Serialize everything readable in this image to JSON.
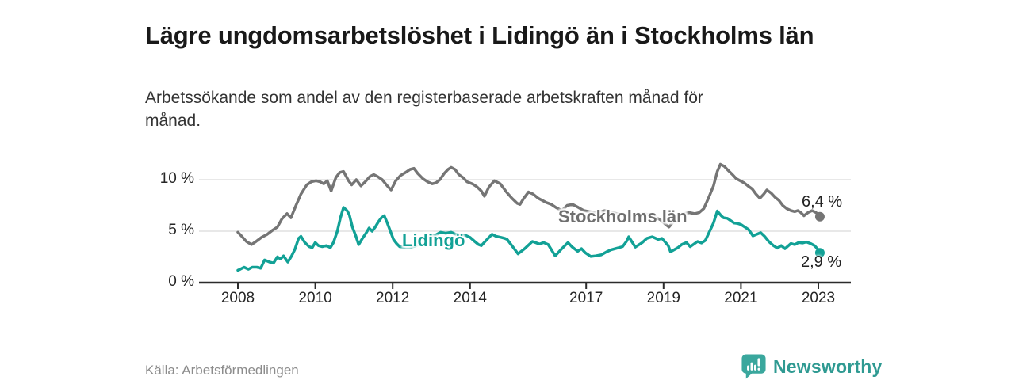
{
  "header": {
    "title": "Lägre ungdomsarbetslöshet i Lidingö än i Stockholms län",
    "subtitle": "Arbetssökande som andel av den registerbaserade arbetskraften månad för månad."
  },
  "footer": {
    "source": "Källa: Arbetsförmedlingen",
    "brand": "Newsworthy",
    "brand_color": "#2f9a92",
    "brand_icon": "speech-bubble-bar-chart-icon"
  },
  "chart_data": {
    "type": "line",
    "title": "Lägre ungdomsarbetslöshet i Lidingö än i Stockholms län",
    "xlabel": "",
    "ylabel": "",
    "xlim": [
      2008,
      2023.2
    ],
    "ylim": [
      0,
      11.8
    ],
    "grid": "horizontal",
    "legend_position": "inline-labels",
    "x_ticks": [
      2008,
      2010,
      2012,
      2014,
      2017,
      2019,
      2021,
      2023
    ],
    "y_ticks": [
      {
        "value": 0,
        "label": "0 %"
      },
      {
        "value": 5,
        "label": "5 %"
      },
      {
        "value": 10,
        "label": "10 %"
      }
    ],
    "colors": {
      "axis": "#2b2b2b",
      "gridline": "#d9d9d9",
      "tick_text": "#262626"
    },
    "series": [
      {
        "name": "Stockholms län",
        "color": "#757575",
        "end_label": "6,4 %",
        "end_value": 6.4,
        "points": [
          [
            2008.0,
            4.9
          ],
          [
            2008.1,
            4.5
          ],
          [
            2008.22,
            4.0
          ],
          [
            2008.35,
            3.7
          ],
          [
            2008.47,
            4.0
          ],
          [
            2008.61,
            4.4
          ],
          [
            2008.76,
            4.7
          ],
          [
            2008.9,
            5.1
          ],
          [
            2009.02,
            5.4
          ],
          [
            2009.14,
            6.2
          ],
          [
            2009.27,
            6.7
          ],
          [
            2009.37,
            6.3
          ],
          [
            2009.49,
            7.4
          ],
          [
            2009.63,
            8.6
          ],
          [
            2009.78,
            9.5
          ],
          [
            2009.9,
            9.8
          ],
          [
            2010.02,
            9.9
          ],
          [
            2010.12,
            9.8
          ],
          [
            2010.22,
            9.6
          ],
          [
            2010.31,
            9.9
          ],
          [
            2010.41,
            8.9
          ],
          [
            2010.53,
            10.2
          ],
          [
            2010.63,
            10.7
          ],
          [
            2010.73,
            10.8
          ],
          [
            2010.86,
            9.9
          ],
          [
            2010.94,
            9.5
          ],
          [
            2011.06,
            10.0
          ],
          [
            2011.18,
            9.4
          ],
          [
            2011.29,
            9.8
          ],
          [
            2011.41,
            10.3
          ],
          [
            2011.51,
            10.5
          ],
          [
            2011.61,
            10.3
          ],
          [
            2011.73,
            10.0
          ],
          [
            2011.86,
            9.4
          ],
          [
            2011.96,
            9.0
          ],
          [
            2012.08,
            9.9
          ],
          [
            2012.2,
            10.4
          ],
          [
            2012.33,
            10.7
          ],
          [
            2012.45,
            11.0
          ],
          [
            2012.55,
            11.1
          ],
          [
            2012.65,
            10.6
          ],
          [
            2012.78,
            10.1
          ],
          [
            2012.9,
            9.8
          ],
          [
            2013.02,
            9.6
          ],
          [
            2013.12,
            9.7
          ],
          [
            2013.22,
            10.0
          ],
          [
            2013.33,
            10.6
          ],
          [
            2013.43,
            11.0
          ],
          [
            2013.51,
            11.2
          ],
          [
            2013.61,
            11.0
          ],
          [
            2013.71,
            10.5
          ],
          [
            2013.82,
            10.2
          ],
          [
            2013.92,
            9.8
          ],
          [
            2014.06,
            9.6
          ],
          [
            2014.18,
            9.3
          ],
          [
            2014.29,
            8.9
          ],
          [
            2014.37,
            8.4
          ],
          [
            2014.49,
            9.3
          ],
          [
            2014.63,
            9.9
          ],
          [
            2014.78,
            9.6
          ],
          [
            2014.94,
            8.8
          ],
          [
            2015.08,
            8.2
          ],
          [
            2015.22,
            7.7
          ],
          [
            2015.29,
            7.6
          ],
          [
            2015.39,
            8.2
          ],
          [
            2015.51,
            8.8
          ],
          [
            2015.63,
            8.6
          ],
          [
            2015.76,
            8.2
          ],
          [
            2015.96,
            7.8
          ],
          [
            2016.1,
            7.6
          ],
          [
            2016.22,
            7.3
          ],
          [
            2016.37,
            7.0
          ],
          [
            2016.51,
            7.5
          ],
          [
            2016.65,
            7.6
          ],
          [
            2016.8,
            7.3
          ],
          [
            2016.94,
            7.0
          ],
          [
            2017.08,
            6.9
          ],
          [
            2017.29,
            6.8
          ],
          [
            2017.49,
            7.0
          ],
          [
            2017.69,
            6.8
          ],
          [
            2017.9,
            6.6
          ],
          [
            2018.1,
            6.5
          ],
          [
            2018.31,
            6.6
          ],
          [
            2018.51,
            6.7
          ],
          [
            2018.71,
            6.5
          ],
          [
            2018.92,
            6.1
          ],
          [
            2019.04,
            5.7
          ],
          [
            2019.14,
            5.4
          ],
          [
            2019.27,
            6.0
          ],
          [
            2019.39,
            6.6
          ],
          [
            2019.53,
            6.7
          ],
          [
            2019.67,
            6.8
          ],
          [
            2019.8,
            6.7
          ],
          [
            2019.92,
            6.8
          ],
          [
            2020.04,
            7.2
          ],
          [
            2020.16,
            8.2
          ],
          [
            2020.29,
            9.4
          ],
          [
            2020.39,
            10.8
          ],
          [
            2020.47,
            11.5
          ],
          [
            2020.57,
            11.3
          ],
          [
            2020.67,
            10.9
          ],
          [
            2020.78,
            10.5
          ],
          [
            2020.88,
            10.1
          ],
          [
            2020.98,
            9.9
          ],
          [
            2021.08,
            9.7
          ],
          [
            2021.18,
            9.4
          ],
          [
            2021.29,
            9.1
          ],
          [
            2021.39,
            8.6
          ],
          [
            2021.49,
            8.2
          ],
          [
            2021.59,
            8.6
          ],
          [
            2021.67,
            9.0
          ],
          [
            2021.78,
            8.7
          ],
          [
            2021.88,
            8.3
          ],
          [
            2021.98,
            8.0
          ],
          [
            2022.08,
            7.5
          ],
          [
            2022.18,
            7.2
          ],
          [
            2022.29,
            7.0
          ],
          [
            2022.39,
            6.9
          ],
          [
            2022.47,
            7.0
          ],
          [
            2022.55,
            6.8
          ],
          [
            2022.63,
            6.5
          ],
          [
            2022.73,
            6.8
          ],
          [
            2022.84,
            7.0
          ],
          [
            2022.94,
            6.8
          ],
          [
            2023.04,
            6.4
          ]
        ]
      },
      {
        "name": "Lidingö",
        "color": "#12a196",
        "end_label": "2,9 %",
        "end_value": 2.9,
        "points": [
          [
            2008.0,
            1.2
          ],
          [
            2008.06,
            1.3
          ],
          [
            2008.16,
            1.5
          ],
          [
            2008.27,
            1.3
          ],
          [
            2008.37,
            1.5
          ],
          [
            2008.49,
            1.5
          ],
          [
            2008.59,
            1.4
          ],
          [
            2008.69,
            2.2
          ],
          [
            2008.82,
            2.0
          ],
          [
            2008.92,
            1.9
          ],
          [
            2009.02,
            2.5
          ],
          [
            2009.1,
            2.3
          ],
          [
            2009.18,
            2.6
          ],
          [
            2009.29,
            2.0
          ],
          [
            2009.39,
            2.6
          ],
          [
            2009.47,
            3.2
          ],
          [
            2009.57,
            4.3
          ],
          [
            2009.63,
            4.5
          ],
          [
            2009.73,
            3.9
          ],
          [
            2009.84,
            3.5
          ],
          [
            2009.92,
            3.4
          ],
          [
            2010.0,
            3.9
          ],
          [
            2010.08,
            3.6
          ],
          [
            2010.18,
            3.5
          ],
          [
            2010.29,
            3.6
          ],
          [
            2010.39,
            3.4
          ],
          [
            2010.47,
            3.9
          ],
          [
            2010.57,
            5.0
          ],
          [
            2010.65,
            6.3
          ],
          [
            2010.73,
            7.3
          ],
          [
            2010.82,
            7.0
          ],
          [
            2010.88,
            6.6
          ],
          [
            2010.96,
            5.4
          ],
          [
            2011.04,
            4.6
          ],
          [
            2011.12,
            3.7
          ],
          [
            2011.22,
            4.3
          ],
          [
            2011.31,
            4.8
          ],
          [
            2011.39,
            5.3
          ],
          [
            2011.47,
            5.0
          ],
          [
            2011.55,
            5.4
          ],
          [
            2011.63,
            5.9
          ],
          [
            2011.71,
            6.3
          ],
          [
            2011.78,
            6.5
          ],
          [
            2011.86,
            5.8
          ],
          [
            2011.94,
            5.0
          ],
          [
            2012.02,
            4.2
          ],
          [
            2012.1,
            3.8
          ],
          [
            2012.18,
            3.5
          ],
          [
            2012.29,
            3.45
          ],
          [
            2012.39,
            3.4
          ],
          [
            2012.49,
            3.45
          ],
          [
            2012.61,
            3.6
          ],
          [
            2012.73,
            3.9
          ],
          [
            2012.86,
            4.2
          ],
          [
            2012.98,
            4.5
          ],
          [
            2013.1,
            4.6
          ],
          [
            2013.24,
            4.9
          ],
          [
            2013.37,
            4.8
          ],
          [
            2013.51,
            4.9
          ],
          [
            2013.63,
            4.7
          ],
          [
            2013.76,
            4.6
          ],
          [
            2013.88,
            4.6
          ],
          [
            2014.0,
            4.4
          ],
          [
            2014.12,
            4.0
          ],
          [
            2014.22,
            3.7
          ],
          [
            2014.29,
            3.6
          ],
          [
            2014.39,
            4.0
          ],
          [
            2014.49,
            4.4
          ],
          [
            2014.57,
            4.7
          ],
          [
            2014.67,
            4.5
          ],
          [
            2014.8,
            4.4
          ],
          [
            2014.9,
            4.3
          ],
          [
            2014.96,
            4.2
          ],
          [
            2015.08,
            3.6
          ],
          [
            2015.24,
            2.8
          ],
          [
            2015.41,
            3.3
          ],
          [
            2015.61,
            4.0
          ],
          [
            2015.8,
            3.75
          ],
          [
            2015.9,
            3.9
          ],
          [
            2016.02,
            3.7
          ],
          [
            2016.2,
            2.6
          ],
          [
            2016.37,
            3.3
          ],
          [
            2016.53,
            3.9
          ],
          [
            2016.63,
            3.5
          ],
          [
            2016.78,
            3.05
          ],
          [
            2016.88,
            3.3
          ],
          [
            2016.98,
            2.9
          ],
          [
            2017.12,
            2.55
          ],
          [
            2017.24,
            2.6
          ],
          [
            2017.39,
            2.7
          ],
          [
            2017.53,
            3.0
          ],
          [
            2017.65,
            3.2
          ],
          [
            2017.8,
            3.35
          ],
          [
            2017.94,
            3.5
          ],
          [
            2018.04,
            4.0
          ],
          [
            2018.1,
            4.45
          ],
          [
            2018.27,
            3.45
          ],
          [
            2018.45,
            3.9
          ],
          [
            2018.57,
            4.3
          ],
          [
            2018.71,
            4.45
          ],
          [
            2018.86,
            4.2
          ],
          [
            2018.96,
            4.3
          ],
          [
            2019.12,
            3.6
          ],
          [
            2019.18,
            3.0
          ],
          [
            2019.37,
            3.4
          ],
          [
            2019.47,
            3.7
          ],
          [
            2019.59,
            3.9
          ],
          [
            2019.69,
            3.5
          ],
          [
            2019.88,
            4.0
          ],
          [
            2019.98,
            3.85
          ],
          [
            2020.08,
            4.1
          ],
          [
            2020.18,
            4.9
          ],
          [
            2020.29,
            5.8
          ],
          [
            2020.39,
            6.95
          ],
          [
            2020.49,
            6.5
          ],
          [
            2020.55,
            6.3
          ],
          [
            2020.65,
            6.25
          ],
          [
            2020.76,
            5.95
          ],
          [
            2020.82,
            5.8
          ],
          [
            2020.92,
            5.75
          ],
          [
            2021.0,
            5.65
          ],
          [
            2021.1,
            5.4
          ],
          [
            2021.2,
            5.15
          ],
          [
            2021.31,
            4.55
          ],
          [
            2021.41,
            4.7
          ],
          [
            2021.51,
            4.85
          ],
          [
            2021.61,
            4.5
          ],
          [
            2021.73,
            3.95
          ],
          [
            2021.84,
            3.6
          ],
          [
            2021.94,
            3.35
          ],
          [
            2022.04,
            3.6
          ],
          [
            2022.14,
            3.3
          ],
          [
            2022.29,
            3.8
          ],
          [
            2022.39,
            3.7
          ],
          [
            2022.49,
            3.9
          ],
          [
            2022.59,
            3.85
          ],
          [
            2022.69,
            3.95
          ],
          [
            2022.8,
            3.8
          ],
          [
            2022.9,
            3.6
          ],
          [
            2023.0,
            3.2
          ],
          [
            2023.04,
            2.9
          ]
        ]
      }
    ]
  }
}
